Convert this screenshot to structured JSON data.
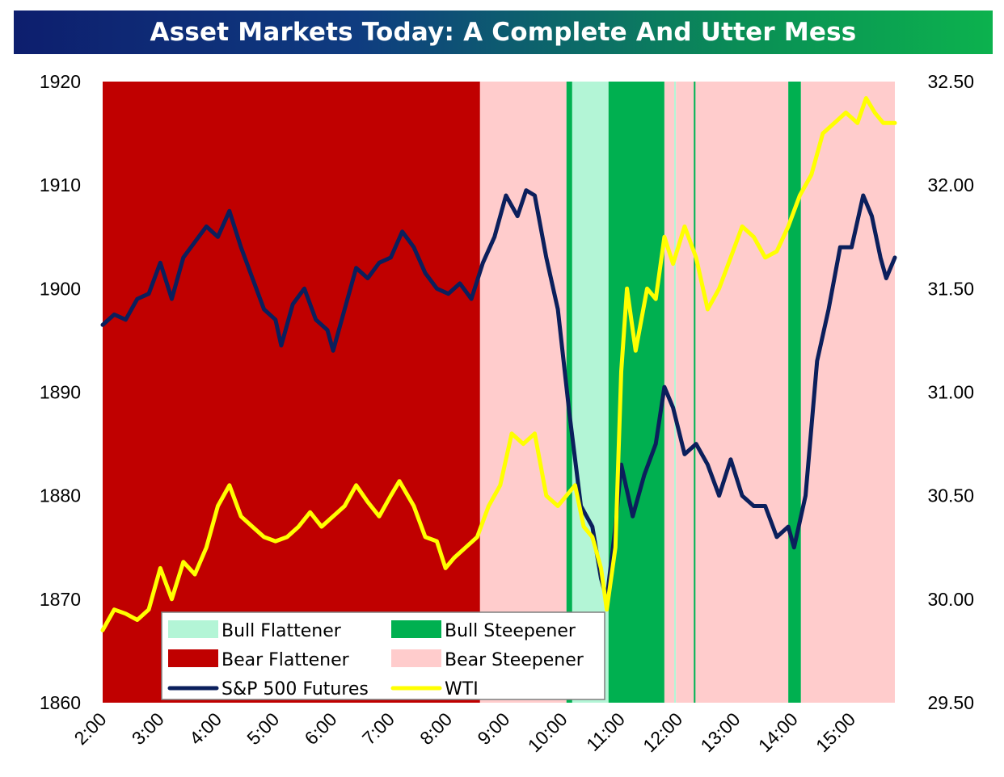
{
  "title": "Asset Markets Today: A Complete And Utter Mess",
  "colors": {
    "bull_flattener": "#b3f5d6",
    "bull_steepener": "#00b050",
    "bear_flattener": "#c00000",
    "bear_steepener": "#ffcccc",
    "sp500": "#0b1f5c",
    "wti": "#ffff00"
  },
  "chart_data": {
    "type": "line",
    "title": "Asset Markets Today: A Complete And Utter Mess",
    "x_ticks": [
      "2:00",
      "3:00",
      "4:00",
      "5:00",
      "6:00",
      "7:00",
      "8:00",
      "9:00",
      "10:00",
      "11:00",
      "12:00",
      "13:00",
      "14:00",
      "15:00"
    ],
    "x_range_hours": [
      2.0,
      15.75
    ],
    "y_left": {
      "range": [
        1860,
        1920
      ],
      "ticks": [
        "1860",
        "1870",
        "1880",
        "1890",
        "1900",
        "1910",
        "1920"
      ]
    },
    "y_right": {
      "range": [
        29.5,
        32.5
      ],
      "ticks": [
        "29.50",
        "30.00",
        "30.50",
        "31.00",
        "31.50",
        "32.00",
        "32.50"
      ]
    },
    "legend": [
      {
        "label": "Bull Flattener",
        "kind": "box",
        "color_key": "bull_flattener"
      },
      {
        "label": "Bull Steepener",
        "kind": "box",
        "color_key": "bull_steepener"
      },
      {
        "label": "Bear Flattener",
        "kind": "box",
        "color_key": "bear_flattener"
      },
      {
        "label": "Bear Steepener",
        "kind": "box",
        "color_key": "bear_steepener"
      },
      {
        "label": "S&P 500 Futures",
        "kind": "line",
        "color_key": "sp500"
      },
      {
        "label": "WTI",
        "kind": "line",
        "color_key": "wti"
      }
    ],
    "regimes": [
      {
        "start": 2.0,
        "end": 8.55,
        "type": "bear_flattener"
      },
      {
        "start": 8.55,
        "end": 10.05,
        "type": "bear_steepener"
      },
      {
        "start": 10.05,
        "end": 10.15,
        "type": "bull_steepener"
      },
      {
        "start": 10.15,
        "end": 10.78,
        "type": "bull_flattener"
      },
      {
        "start": 10.78,
        "end": 11.75,
        "type": "bull_steepener"
      },
      {
        "start": 11.75,
        "end": 11.92,
        "type": "bear_steepener"
      },
      {
        "start": 11.92,
        "end": 11.95,
        "type": "bull_flattener"
      },
      {
        "start": 11.95,
        "end": 12.26,
        "type": "bear_steepener"
      },
      {
        "start": 12.26,
        "end": 12.29,
        "type": "bull_steepener"
      },
      {
        "start": 12.29,
        "end": 13.9,
        "type": "bear_steepener"
      },
      {
        "start": 13.9,
        "end": 14.12,
        "type": "bull_steepener"
      },
      {
        "start": 14.12,
        "end": 15.75,
        "type": "bear_steepener"
      }
    ],
    "series": [
      {
        "name": "S&P 500 Futures",
        "axis": "left",
        "color_key": "sp500",
        "points": [
          [
            2.0,
            1896.5
          ],
          [
            2.2,
            1897.5
          ],
          [
            2.4,
            1897
          ],
          [
            2.6,
            1899
          ],
          [
            2.8,
            1899.5
          ],
          [
            3.0,
            1902.5
          ],
          [
            3.2,
            1899
          ],
          [
            3.4,
            1903
          ],
          [
            3.6,
            1904.5
          ],
          [
            3.8,
            1906
          ],
          [
            4.0,
            1905
          ],
          [
            4.2,
            1907.5
          ],
          [
            4.4,
            1904
          ],
          [
            4.6,
            1901
          ],
          [
            4.8,
            1898
          ],
          [
            5.0,
            1897
          ],
          [
            5.1,
            1894.5
          ],
          [
            5.3,
            1898.5
          ],
          [
            5.5,
            1900
          ],
          [
            5.7,
            1897
          ],
          [
            5.9,
            1896
          ],
          [
            6.0,
            1894
          ],
          [
            6.2,
            1898
          ],
          [
            6.4,
            1902
          ],
          [
            6.6,
            1901
          ],
          [
            6.8,
            1902.5
          ],
          [
            7.0,
            1903
          ],
          [
            7.2,
            1905.5
          ],
          [
            7.4,
            1904
          ],
          [
            7.6,
            1901.5
          ],
          [
            7.8,
            1900
          ],
          [
            8.0,
            1899.5
          ],
          [
            8.2,
            1900.5
          ],
          [
            8.4,
            1899
          ],
          [
            8.6,
            1902.5
          ],
          [
            8.8,
            1905
          ],
          [
            9.0,
            1909
          ],
          [
            9.2,
            1907
          ],
          [
            9.35,
            1909.5
          ],
          [
            9.5,
            1909
          ],
          [
            9.7,
            1903
          ],
          [
            9.9,
            1898
          ],
          [
            10.1,
            1888
          ],
          [
            10.3,
            1879
          ],
          [
            10.5,
            1877
          ],
          [
            10.65,
            1872
          ],
          [
            10.75,
            1870
          ],
          [
            10.9,
            1877
          ],
          [
            11.0,
            1883
          ],
          [
            11.2,
            1878
          ],
          [
            11.4,
            1882
          ],
          [
            11.6,
            1885
          ],
          [
            11.75,
            1890.5
          ],
          [
            11.9,
            1888.5
          ],
          [
            12.1,
            1884
          ],
          [
            12.3,
            1885
          ],
          [
            12.5,
            1883
          ],
          [
            12.7,
            1880
          ],
          [
            12.9,
            1883.5
          ],
          [
            13.1,
            1880
          ],
          [
            13.3,
            1879
          ],
          [
            13.5,
            1879
          ],
          [
            13.7,
            1876
          ],
          [
            13.9,
            1877
          ],
          [
            14.0,
            1875
          ],
          [
            14.2,
            1880
          ],
          [
            14.4,
            1893
          ],
          [
            14.6,
            1898
          ],
          [
            14.8,
            1904
          ],
          [
            15.0,
            1904
          ],
          [
            15.2,
            1909
          ],
          [
            15.35,
            1907
          ],
          [
            15.5,
            1903
          ],
          [
            15.6,
            1901
          ],
          [
            15.75,
            1903
          ]
        ]
      },
      {
        "name": "WTI",
        "axis": "right",
        "color_key": "wti",
        "points": [
          [
            2.0,
            29.85
          ],
          [
            2.2,
            29.95
          ],
          [
            2.4,
            29.93
          ],
          [
            2.6,
            29.9
          ],
          [
            2.8,
            29.95
          ],
          [
            3.0,
            30.15
          ],
          [
            3.2,
            30.0
          ],
          [
            3.4,
            30.18
          ],
          [
            3.6,
            30.12
          ],
          [
            3.8,
            30.25
          ],
          [
            4.0,
            30.45
          ],
          [
            4.2,
            30.55
          ],
          [
            4.4,
            30.4
          ],
          [
            4.6,
            30.35
          ],
          [
            4.8,
            30.3
          ],
          [
            5.0,
            30.28
          ],
          [
            5.2,
            30.3
          ],
          [
            5.4,
            30.35
          ],
          [
            5.6,
            30.42
          ],
          [
            5.8,
            30.35
          ],
          [
            6.0,
            30.4
          ],
          [
            6.2,
            30.45
          ],
          [
            6.4,
            30.55
          ],
          [
            6.6,
            30.47
          ],
          [
            6.8,
            30.4
          ],
          [
            7.0,
            30.5
          ],
          [
            7.15,
            30.57
          ],
          [
            7.4,
            30.45
          ],
          [
            7.6,
            30.3
          ],
          [
            7.8,
            30.28
          ],
          [
            7.95,
            30.15
          ],
          [
            8.1,
            30.2
          ],
          [
            8.3,
            30.25
          ],
          [
            8.5,
            30.3
          ],
          [
            8.7,
            30.45
          ],
          [
            8.9,
            30.55
          ],
          [
            9.1,
            30.8
          ],
          [
            9.3,
            30.75
          ],
          [
            9.5,
            30.8
          ],
          [
            9.7,
            30.5
          ],
          [
            9.9,
            30.45
          ],
          [
            10.05,
            30.5
          ],
          [
            10.2,
            30.55
          ],
          [
            10.35,
            30.35
          ],
          [
            10.5,
            30.3
          ],
          [
            10.65,
            30.15
          ],
          [
            10.75,
            29.95
          ],
          [
            10.9,
            30.25
          ],
          [
            11.0,
            31.1
          ],
          [
            11.1,
            31.5
          ],
          [
            11.25,
            31.2
          ],
          [
            11.45,
            31.5
          ],
          [
            11.6,
            31.45
          ],
          [
            11.75,
            31.75
          ],
          [
            11.9,
            31.62
          ],
          [
            12.1,
            31.8
          ],
          [
            12.3,
            31.65
          ],
          [
            12.5,
            31.4
          ],
          [
            12.7,
            31.5
          ],
          [
            12.9,
            31.65
          ],
          [
            13.1,
            31.8
          ],
          [
            13.3,
            31.75
          ],
          [
            13.5,
            31.65
          ],
          [
            13.7,
            31.68
          ],
          [
            13.9,
            31.8
          ],
          [
            14.1,
            31.95
          ],
          [
            14.3,
            32.05
          ],
          [
            14.5,
            32.25
          ],
          [
            14.7,
            32.3
          ],
          [
            14.9,
            32.35
          ],
          [
            15.1,
            32.3
          ],
          [
            15.25,
            32.42
          ],
          [
            15.4,
            32.35
          ],
          [
            15.55,
            32.3
          ],
          [
            15.75,
            32.3
          ]
        ]
      }
    ]
  }
}
